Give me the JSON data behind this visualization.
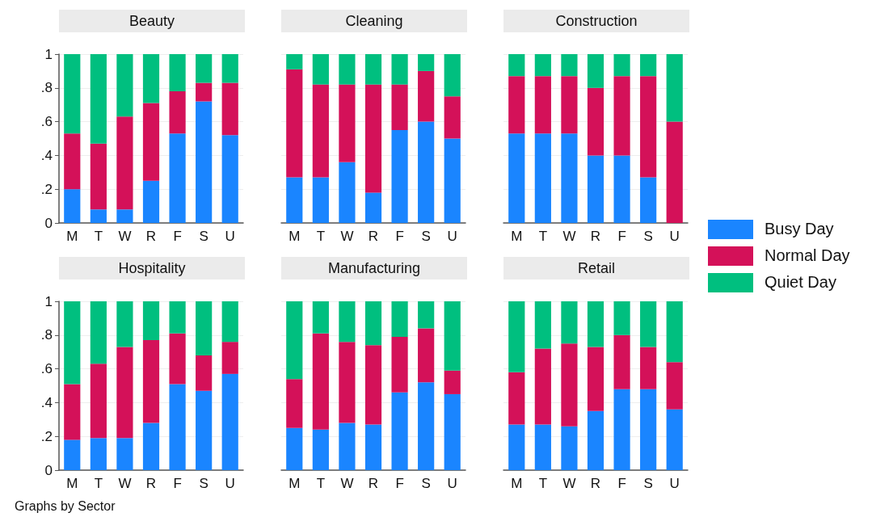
{
  "chart_data": [
    {
      "type": "bar",
      "title": "Beauty",
      "stacked": true,
      "grid": "y",
      "legend": false,
      "categories": [
        "M",
        "T",
        "W",
        "R",
        "F",
        "S",
        "U"
      ],
      "ylim": [
        0,
        1
      ],
      "yticks": [
        0,
        {
          "value": 0.2,
          "label": ".2"
        },
        {
          "value": 0.4,
          "label": ".4"
        },
        {
          "value": 0.6,
          "label": ".6"
        },
        {
          "value": 0.8,
          "label": ".8"
        },
        1
      ],
      "series": [
        {
          "color": "#1a85ff",
          "values": [
            0.2,
            0.08,
            0.08,
            0.25,
            0.53,
            0.72,
            0.52
          ]
        },
        {
          "color": "#d41159",
          "values": [
            0.33,
            0.39,
            0.55,
            0.46,
            0.25,
            0.11,
            0.31
          ]
        },
        {
          "color": "#00bf7f",
          "values": [
            0.47,
            0.53,
            0.37,
            0.29,
            0.22,
            0.17,
            0.17
          ]
        }
      ]
    },
    {
      "type": "bar",
      "title": "Cleaning",
      "stacked": true,
      "grid": "y",
      "legend": false,
      "tick_labels": "x",
      "categories": [
        "M",
        "T",
        "W",
        "R",
        "F",
        "S",
        "U"
      ],
      "ylim": [
        0,
        1
      ],
      "yticks": [
        0,
        0.2,
        0.4,
        0.6,
        0.8,
        1
      ],
      "series": [
        {
          "color": "#1a85ff",
          "values": [
            0.27,
            0.27,
            0.36,
            0.18,
            0.55,
            0.6,
            0.5
          ]
        },
        {
          "color": "#d41159",
          "values": [
            0.64,
            0.55,
            0.46,
            0.64,
            0.27,
            0.3,
            0.25
          ]
        },
        {
          "color": "#00bf7f",
          "values": [
            0.09,
            0.18,
            0.18,
            0.18,
            0.18,
            0.1,
            0.25
          ]
        }
      ]
    },
    {
      "type": "bar",
      "title": "Construction",
      "stacked": true,
      "grid": "y",
      "legend": "right",
      "tick_labels": "x",
      "categories": [
        "M",
        "T",
        "W",
        "R",
        "F",
        "S",
        "U"
      ],
      "ylim": [
        0,
        1
      ],
      "yticks": [
        0,
        0.2,
        0.4,
        0.6,
        0.8,
        1
      ],
      "series": [
        {
          "name": "Busy Day",
          "color": "#1a85ff",
          "values": [
            0.53,
            0.53,
            0.53,
            0.4,
            0.4,
            0.27,
            0
          ]
        },
        {
          "name": "Normal Day",
          "color": "#d41159",
          "values": [
            0.34,
            0.34,
            0.34,
            0.4,
            0.47,
            0.6,
            0.6
          ]
        },
        {
          "name": "Quiet Day",
          "color": "#00bf7f",
          "values": [
            0.13,
            0.13,
            0.13,
            0.2,
            0.13,
            0.13,
            0.4
          ]
        }
      ]
    },
    {
      "type": "bar",
      "title": "Hospitality",
      "stacked": true,
      "grid": "y",
      "legend": false,
      "annotations": [
        "Graphs by Sector"
      ],
      "categories": [
        "M",
        "T",
        "W",
        "R",
        "F",
        "S",
        "U"
      ],
      "ylim": [
        0,
        1
      ],
      "yticks": [
        0,
        {
          "value": 0.2,
          "label": ".2"
        },
        {
          "value": 0.4,
          "label": ".4"
        },
        {
          "value": 0.6,
          "label": ".6"
        },
        {
          "value": 0.8,
          "label": ".8"
        },
        1
      ],
      "series": [
        {
          "color": "#1a85ff",
          "values": [
            0.18,
            0.19,
            0.19,
            0.28,
            0.51,
            0.47,
            0.57
          ]
        },
        {
          "color": "#d41159",
          "values": [
            0.33,
            0.44,
            0.54,
            0.49,
            0.3,
            0.21,
            0.19
          ]
        },
        {
          "color": "#00bf7f",
          "values": [
            0.49,
            0.37,
            0.27,
            0.23,
            0.19,
            0.32,
            0.24
          ]
        }
      ]
    },
    {
      "type": "bar",
      "title": "Manufacturing",
      "stacked": true,
      "grid": "y",
      "legend": false,
      "tick_labels": "x",
      "categories": [
        "M",
        "T",
        "W",
        "R",
        "F",
        "S",
        "U"
      ],
      "ylim": [
        0,
        1
      ],
      "yticks": [
        0,
        0.2,
        0.4,
        0.6,
        0.8,
        1
      ],
      "series": [
        {
          "color": "#1a85ff",
          "values": [
            0.25,
            0.24,
            0.28,
            0.27,
            0.46,
            0.52,
            0.45
          ]
        },
        {
          "color": "#d41159",
          "values": [
            0.29,
            0.57,
            0.48,
            0.47,
            0.33,
            0.32,
            0.14
          ]
        },
        {
          "color": "#00bf7f",
          "values": [
            0.46,
            0.19,
            0.24,
            0.26,
            0.21,
            0.16,
            0.41
          ]
        }
      ]
    },
    {
      "type": "bar",
      "title": "Retail",
      "stacked": true,
      "grid": "y",
      "legend": false,
      "tick_labels": "x",
      "categories": [
        "M",
        "T",
        "W",
        "R",
        "F",
        "S",
        "U"
      ],
      "ylim": [
        0,
        1
      ],
      "yticks": [
        0,
        0.2,
        0.4,
        0.6,
        0.8,
        1
      ],
      "series": [
        {
          "color": "#1a85ff",
          "values": [
            0.27,
            0.27,
            0.26,
            0.35,
            0.48,
            0.48,
            0.36
          ]
        },
        {
          "color": "#d41159",
          "values": [
            0.31,
            0.45,
            0.49,
            0.38,
            0.32,
            0.25,
            0.28
          ]
        },
        {
          "color": "#00bf7f",
          "values": [
            0.42,
            0.28,
            0.25,
            0.27,
            0.2,
            0.27,
            0.36
          ]
        }
      ]
    }
  ]
}
